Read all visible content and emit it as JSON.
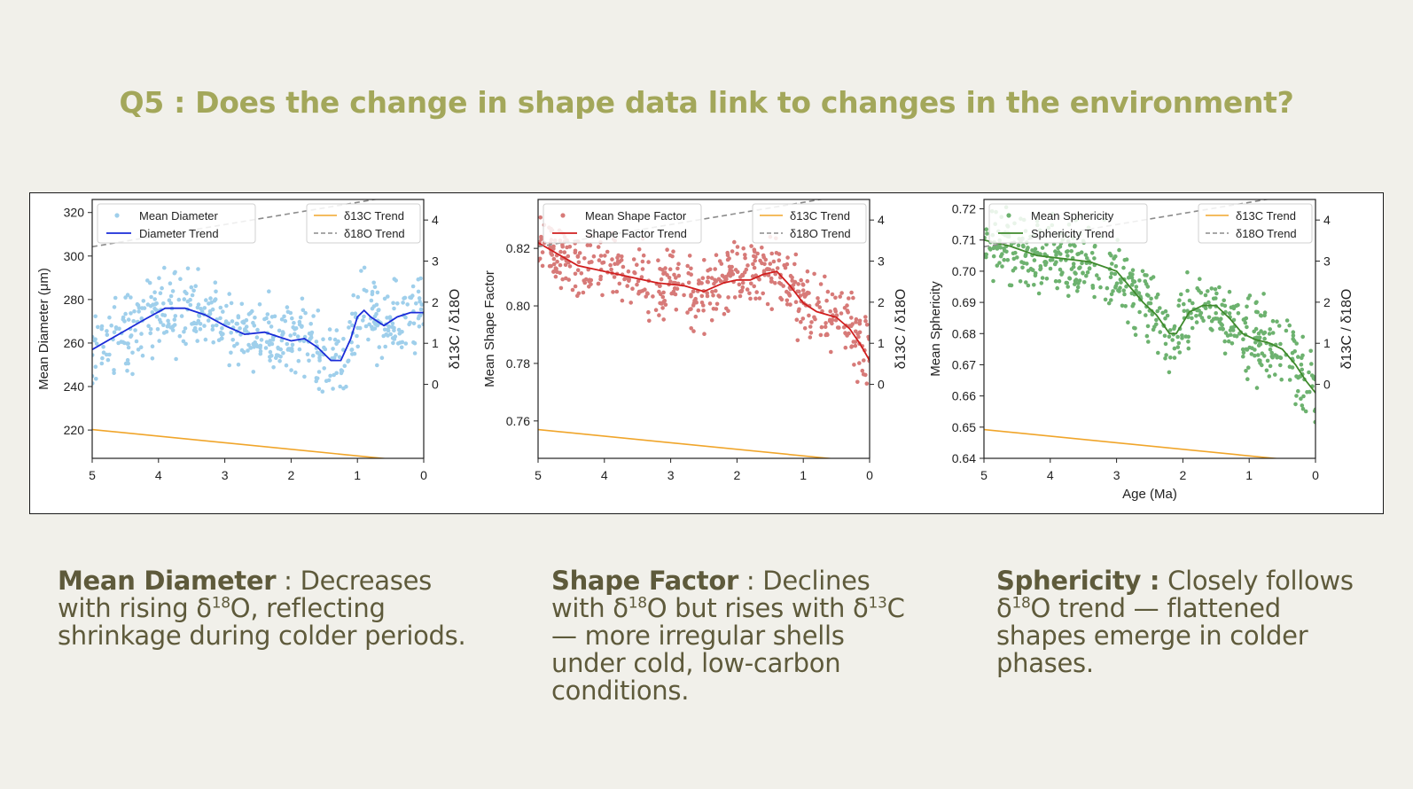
{
  "title": "Q5 : Does the change in shape data link to changes in the environment?",
  "colors": {
    "background": "#f1f0ea",
    "title": "#a3a75a",
    "caption": "#5e5a3b",
    "d13c": "#f0a52a",
    "d18o": "#8c8c8c"
  },
  "captions": [
    {
      "head": "Mean Diameter",
      "sep": " : ",
      "parts": [
        "Decreases with rising δ",
        "18",
        "O, reflecting shrinkage during colder periods."
      ]
    },
    {
      "head": "Shape Factor",
      "sep": " : ",
      "parts": [
        "Declines with δ",
        "18",
        "O but rises with δ",
        "13",
        "C — more irregular shells under cold, low-carbon conditions."
      ]
    },
    {
      "head": "Sphericity :",
      "sep": " ",
      "parts": [
        "Closely follows δ",
        "18",
        "O trend — flattened shapes emerge in colder phases."
      ]
    }
  ],
  "chart_data": [
    {
      "type": "scatter",
      "xlabel": "",
      "ylabel": "Mean Diameter (μm)",
      "y2label": "δ13C / δ18O",
      "xlim": [
        5,
        0
      ],
      "ylim": [
        207,
        326
      ],
      "y2lim": [
        -1.8,
        4.5
      ],
      "xticks": [
        "5",
        "4",
        "3",
        "2",
        "1",
        "0"
      ],
      "yticks": [
        220,
        240,
        260,
        280,
        300,
        320
      ],
      "y2ticks": [
        0,
        1,
        2,
        3,
        4
      ],
      "legend_left": [
        "Mean Diameter",
        "Diameter Trend"
      ],
      "legend_right": [
        "δ13C Trend",
        "δ18O Trend"
      ],
      "point_color": "#9fcfeb",
      "trend_color": "#1a2bd8",
      "trend": {
        "x": [
          5,
          4.6,
          4.2,
          3.9,
          3.6,
          3.3,
          3.0,
          2.7,
          2.4,
          2.2,
          2.0,
          1.8,
          1.6,
          1.4,
          1.25,
          1.1,
          1.0,
          0.9,
          0.8,
          0.6,
          0.4,
          0.2,
          0
        ],
        "y": [
          257,
          264,
          271,
          276,
          276,
          273,
          268,
          264,
          265,
          263,
          261,
          262,
          258,
          252,
          252,
          262,
          272,
          275,
          272,
          268,
          272,
          274,
          274
        ]
      },
      "d13c": {
        "x": [
          5,
          0
        ],
        "y": [
          -1.1,
          -1.9
        ]
      },
      "d18o": {
        "x": [
          5,
          0
        ],
        "y": [
          3.35,
          4.7
        ]
      },
      "scatter": {
        "n": 520,
        "seed": 11,
        "spread": 13
      }
    },
    {
      "type": "scatter",
      "xlabel": "",
      "ylabel": "Mean Shape Factor",
      "y2label": "δ13C / δ18O",
      "xlim": [
        5,
        0
      ],
      "ylim": [
        0.747,
        0.837
      ],
      "y2lim": [
        -1.8,
        4.5
      ],
      "xticks": [
        "5",
        "4",
        "3",
        "2",
        "1",
        "0"
      ],
      "yticks": [
        0.76,
        0.78,
        0.8,
        0.82
      ],
      "y2ticks": [
        0,
        1,
        2,
        3,
        4
      ],
      "legend_left": [
        "Mean Shape Factor",
        "Shape Factor Trend"
      ],
      "legend_right": [
        "δ13C Trend",
        "δ18O Trend"
      ],
      "point_color": "#d77a78",
      "trend_color": "#d11f1f",
      "trend": {
        "x": [
          5,
          4.7,
          4.4,
          4.0,
          3.6,
          3.2,
          2.8,
          2.5,
          2.2,
          2.0,
          1.8,
          1.6,
          1.4,
          1.2,
          1.0,
          0.8,
          0.5,
          0.3,
          0.15,
          0
        ],
        "y": [
          0.822,
          0.818,
          0.814,
          0.812,
          0.81,
          0.808,
          0.807,
          0.805,
          0.808,
          0.809,
          0.809,
          0.811,
          0.812,
          0.807,
          0.801,
          0.798,
          0.796,
          0.792,
          0.787,
          0.781
        ]
      },
      "d13c": {
        "x": [
          5,
          0
        ],
        "y": [
          -1.1,
          -1.9
        ]
      },
      "d18o": {
        "x": [
          5,
          0
        ],
        "y": [
          3.35,
          4.7
        ]
      },
      "scatter": {
        "n": 540,
        "seed": 23,
        "spread": 0.0085
      }
    },
    {
      "type": "scatter",
      "xlabel": "Age (Ma)",
      "ylabel": "Mean Sphericity",
      "y2label": "δ13C / δ18O",
      "xlim": [
        5,
        0
      ],
      "ylim": [
        0.64,
        0.723
      ],
      "y2lim": [
        -1.8,
        4.5
      ],
      "xticks": [
        "5",
        "4",
        "3",
        "2",
        "1",
        "0"
      ],
      "yticks": [
        0.64,
        0.65,
        0.66,
        0.67,
        0.68,
        0.69,
        0.7,
        0.71,
        0.72
      ],
      "y2ticks": [
        0,
        1,
        2,
        3,
        4
      ],
      "legend_left": [
        "Mean Sphericity",
        "Sphericity Trend"
      ],
      "legend_right": [
        "δ13C Trend",
        "δ18O Trend"
      ],
      "point_color": "#6db26f",
      "trend_color": "#3f8a2c",
      "trend": {
        "x": [
          5,
          4.6,
          4.2,
          3.8,
          3.4,
          3.0,
          2.8,
          2.6,
          2.4,
          2.2,
          2.1,
          1.9,
          1.7,
          1.5,
          1.3,
          1.1,
          0.9,
          0.7,
          0.5,
          0.3,
          0.15,
          0
        ],
        "y": [
          0.71,
          0.708,
          0.705,
          0.704,
          0.703,
          0.7,
          0.695,
          0.69,
          0.686,
          0.68,
          0.68,
          0.687,
          0.689,
          0.689,
          0.685,
          0.68,
          0.678,
          0.677,
          0.675,
          0.67,
          0.665,
          0.661
        ]
      },
      "d13c": {
        "x": [
          5,
          0
        ],
        "y": [
          -1.1,
          -1.9
        ]
      },
      "d18o": {
        "x": [
          5,
          0
        ],
        "y": [
          3.35,
          4.7
        ]
      },
      "scatter": {
        "n": 560,
        "seed": 37,
        "spread": 0.0085
      }
    }
  ]
}
